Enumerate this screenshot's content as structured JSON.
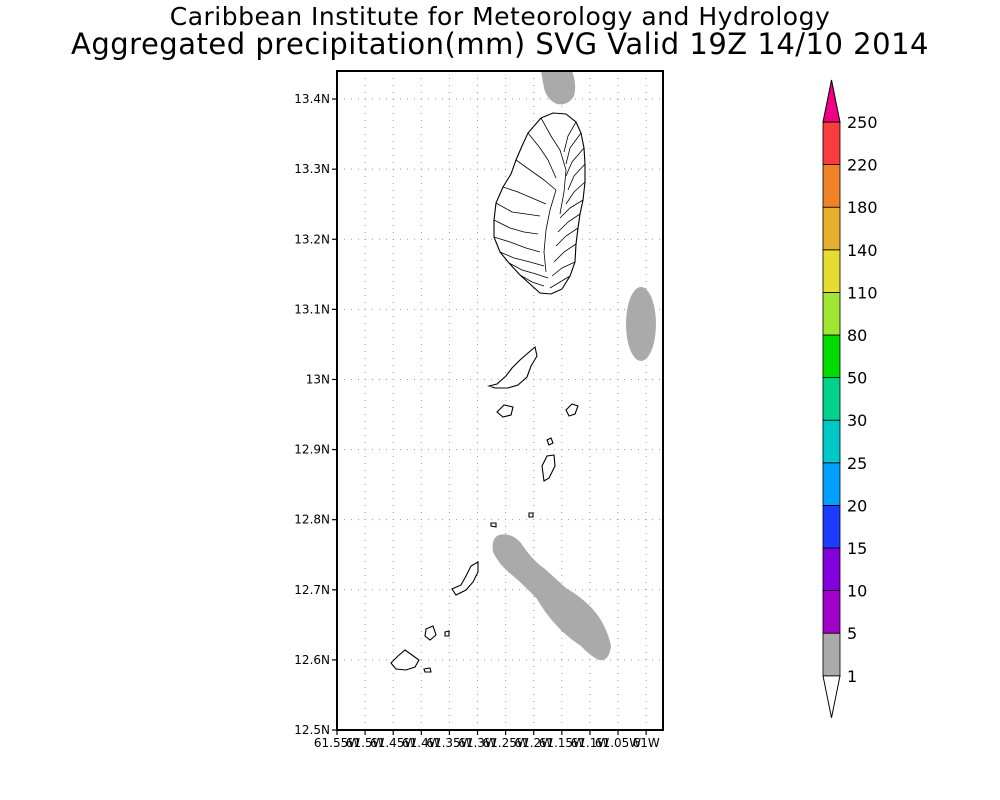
{
  "header": {
    "title": "Caribbean Institute for Meteorology and Hydrology",
    "subtitle": "Aggregated precipitation(mm) SVG Valid 19Z 14/10 2014"
  },
  "map": {
    "region": "Saint Vincent and the Grenadines",
    "lat_range": [
      12.5,
      13.44
    ],
    "lon_range": [
      -61.55,
      -60.97
    ],
    "lat_labels": [
      "13.4N",
      "13.3N",
      "13.2N",
      "13.1N",
      "13N",
      "12.9N",
      "12.8N",
      "12.7N",
      "12.6N",
      "12.5N"
    ],
    "lon_labels": [
      "61.55W",
      "61.5W",
      "61.45W",
      "61.4W",
      "61.35W",
      "61.3W",
      "61.25W",
      "61.2W",
      "61.15W",
      "61.1W",
      "61.05W",
      "61W"
    ],
    "grid": "dotted",
    "precip_color": "#aaaaaa",
    "precip_class": "1-5"
  },
  "colorbar": {
    "labels": [
      "1",
      "5",
      "10",
      "15",
      "20",
      "25",
      "30",
      "50",
      "80",
      "110",
      "140",
      "180",
      "220",
      "250"
    ],
    "colors": [
      "#aaaaaa",
      "#a000c8",
      "#8200dc",
      "#1e3cff",
      "#00a0ff",
      "#00c8c8",
      "#00d28c",
      "#00dc00",
      "#a0e632",
      "#e6dc32",
      "#e6af2d",
      "#f08228",
      "#fa3c3c",
      "#f00082"
    ],
    "low_end_color": "#ffffff",
    "high_end_color": "#f00082"
  }
}
